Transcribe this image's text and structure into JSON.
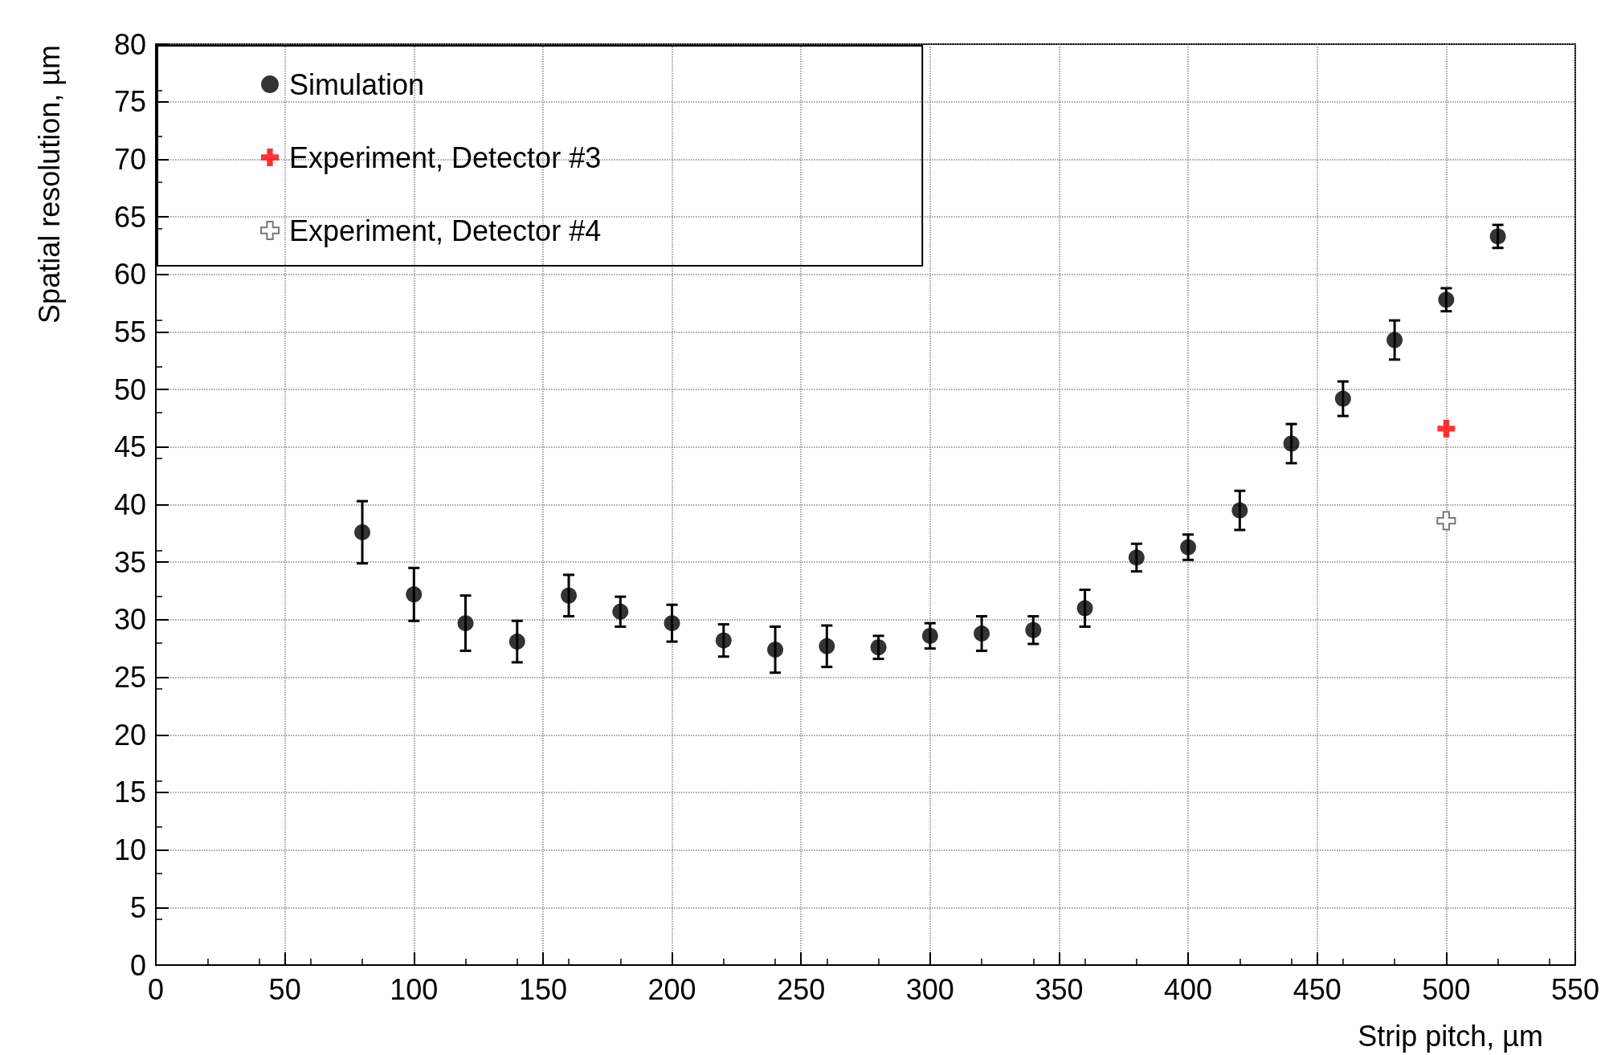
{
  "chart_data": {
    "type": "scatter",
    "xlabel": "Strip pitch, µm",
    "ylabel": "Spatial resolution, µm",
    "xlim": [
      0,
      550
    ],
    "xticks": [
      0,
      50,
      100,
      150,
      200,
      250,
      300,
      350,
      400,
      450,
      500,
      550
    ],
    "ylim": [
      0,
      80
    ],
    "yticks": [
      0,
      5,
      10,
      15,
      20,
      25,
      30,
      35,
      40,
      45,
      50,
      55,
      60,
      65,
      70,
      75,
      80
    ],
    "grid": true,
    "legend": "top left",
    "series": [
      {
        "name": "Simulation",
        "color": "#000000",
        "marker": "circle",
        "x": [
          80,
          100,
          120,
          140,
          160,
          180,
          200,
          220,
          240,
          260,
          280,
          300,
          320,
          340,
          360,
          380,
          400,
          420,
          440,
          460,
          480,
          500,
          520
        ],
        "values": [
          37.6,
          32.2,
          29.7,
          28.1,
          32.1,
          30.7,
          29.7,
          28.2,
          27.4,
          27.7,
          27.6,
          28.6,
          28.8,
          29.1,
          31.0,
          35.4,
          36.3,
          39.5,
          45.3,
          49.2,
          54.3,
          57.8,
          63.3
        ],
        "errors": [
          2.7,
          2.3,
          2.4,
          1.8,
          1.8,
          1.3,
          1.6,
          1.4,
          2.0,
          1.8,
          1.0,
          1.1,
          1.5,
          1.2,
          1.6,
          1.2,
          1.1,
          1.7,
          1.7,
          1.5,
          1.7,
          1.0,
          1.0
        ]
      },
      {
        "name": "Experiment, Detector #3",
        "color": "#ff0000",
        "marker": "cross",
        "x": [
          500
        ],
        "values": [
          46.6
        ]
      },
      {
        "name": "Experiment, Detector #4",
        "color": "#ffffff",
        "marker": "cross",
        "x": [
          500
        ],
        "values": [
          38.6
        ]
      }
    ]
  }
}
